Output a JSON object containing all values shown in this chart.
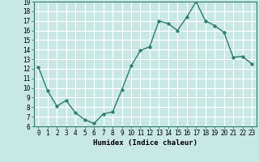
{
  "x": [
    0,
    1,
    2,
    3,
    4,
    5,
    6,
    7,
    8,
    9,
    10,
    11,
    12,
    13,
    14,
    15,
    16,
    17,
    18,
    19,
    20,
    21,
    22,
    23
  ],
  "y": [
    12.2,
    9.7,
    8.1,
    8.7,
    7.4,
    6.7,
    6.3,
    7.3,
    7.5,
    9.8,
    12.3,
    13.9,
    14.3,
    17.0,
    16.7,
    16.0,
    17.4,
    19.0,
    17.0,
    16.5,
    15.8,
    13.2,
    13.3,
    12.5
  ],
  "line_color": "#2e7d6e",
  "bg_color": "#c8e8e4",
  "grid_color": "#ffffff",
  "xlabel": "Humidex (Indice chaleur)",
  "ylim": [
    6,
    19
  ],
  "xlim_min": -0.5,
  "xlim_max": 23.5,
  "yticks": [
    6,
    7,
    8,
    9,
    10,
    11,
    12,
    13,
    14,
    15,
    16,
    17,
    18,
    19
  ],
  "xticks": [
    0,
    1,
    2,
    3,
    4,
    5,
    6,
    7,
    8,
    9,
    10,
    11,
    12,
    13,
    14,
    15,
    16,
    17,
    18,
    19,
    20,
    21,
    22,
    23
  ],
  "xtick_labels": [
    "0",
    "1",
    "2",
    "3",
    "4",
    "5",
    "6",
    "7",
    "8",
    "9",
    "10",
    "11",
    "12",
    "13",
    "14",
    "15",
    "16",
    "17",
    "18",
    "19",
    "20",
    "21",
    "22",
    "23"
  ],
  "marker_size": 2.5,
  "line_width": 1.0,
  "tick_fontsize": 5.5,
  "xlabel_fontsize": 6.5
}
